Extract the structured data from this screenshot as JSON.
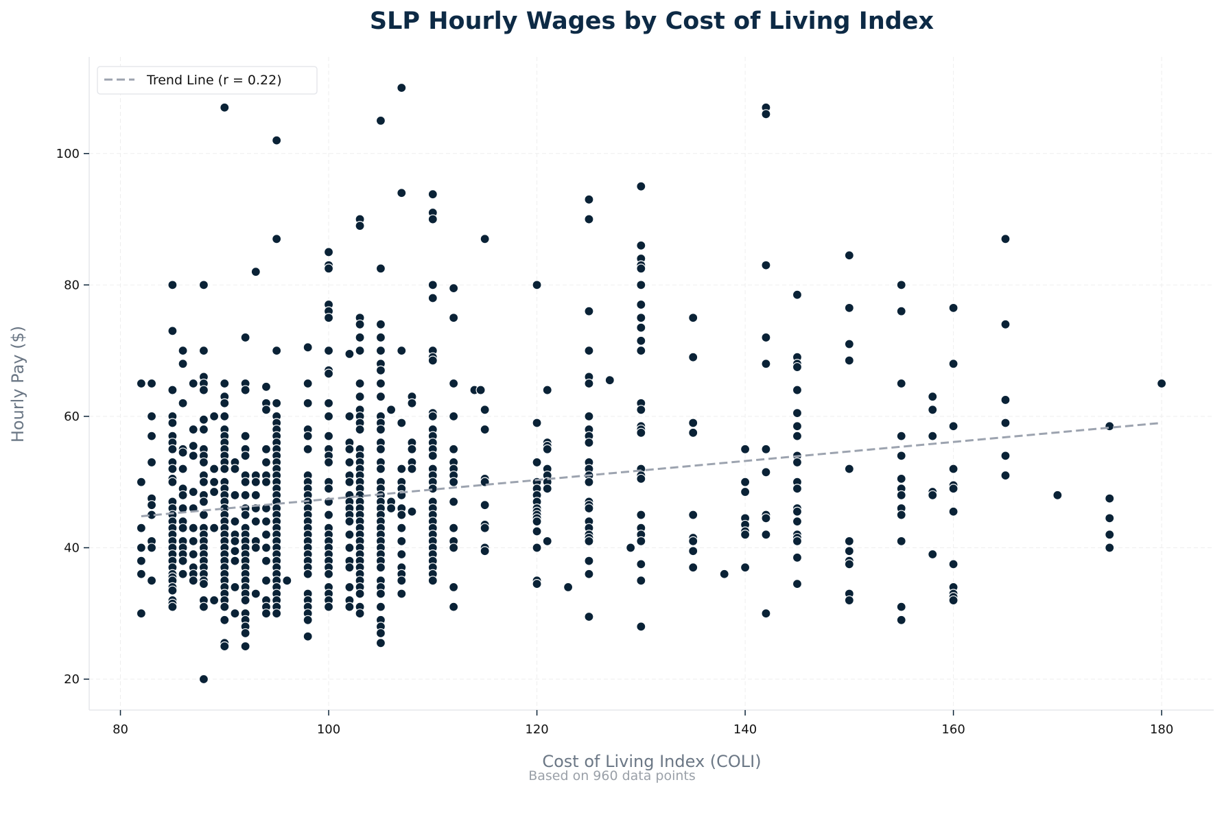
{
  "chart_data": {
    "type": "scatter",
    "title": "SLP Hourly Wages by Cost of Living Index",
    "xlabel": "Cost of Living Index (COLI)",
    "ylabel": "Hourly Pay ($)",
    "footnote": "Based on 960 data points",
    "xlim": [
      77,
      185
    ],
    "ylim": [
      15.3,
      114.7
    ],
    "xticks": [
      80,
      100,
      120,
      140,
      160,
      180
    ],
    "yticks": [
      20,
      40,
      60,
      80,
      100
    ],
    "grid": true,
    "legend_position": "top-left",
    "point_color": "#0a2236",
    "trend_color": "#9ca3af",
    "trend_line": {
      "label": "Trend Line (r = 0.22)",
      "x": [
        82,
        180
      ],
      "y": [
        44.8,
        59.0
      ]
    },
    "columns": [
      {
        "x": 82,
        "y": [
          65,
          50,
          43,
          40,
          38,
          36,
          30
        ]
      },
      {
        "x": 83,
        "y": [
          65,
          60,
          57,
          53,
          47.5,
          46.5,
          45,
          41,
          40,
          35
        ]
      },
      {
        "x": 85,
        "y": [
          80,
          73,
          64,
          60,
          59,
          57,
          56,
          55,
          53,
          52,
          50.5,
          50,
          47,
          46,
          45,
          44,
          43,
          42,
          41,
          40,
          39,
          38,
          37,
          36,
          35.5,
          35,
          34,
          33.5,
          32,
          31.5,
          31
        ]
      },
      {
        "x": 86,
        "y": [
          70,
          68,
          62,
          55,
          54.5,
          52,
          49,
          48,
          46,
          44,
          43,
          41,
          40,
          39,
          38,
          36
        ]
      },
      {
        "x": 87,
        "y": [
          65,
          58,
          55.5,
          54,
          48.5,
          46,
          43,
          41,
          39,
          37,
          36,
          35
        ]
      },
      {
        "x": 88,
        "y": [
          80,
          70,
          66,
          65,
          64,
          59.5,
          58,
          55,
          54,
          53,
          51,
          50,
          48,
          47,
          45,
          43,
          42,
          41,
          40,
          39,
          38,
          37,
          36,
          35,
          34.5,
          32,
          31,
          20
        ]
      },
      {
        "x": 89,
        "y": [
          60,
          52,
          50,
          48.5,
          43,
          32
        ]
      },
      {
        "x": 90,
        "y": [
          107,
          65,
          63,
          62,
          60,
          58,
          57,
          56,
          55,
          54,
          53,
          52,
          50,
          49,
          48,
          47,
          46,
          45,
          44,
          43,
          42,
          41,
          40,
          39,
          38,
          37,
          36,
          35,
          34,
          33,
          32,
          31,
          29,
          25.5,
          25
        ]
      },
      {
        "x": 91,
        "y": [
          53,
          52,
          48,
          44,
          42,
          41,
          39.5,
          38,
          34,
          30
        ]
      },
      {
        "x": 92,
        "y": [
          72,
          65,
          64,
          57,
          55,
          54,
          51,
          50,
          48,
          46,
          45,
          43,
          42,
          41,
          40,
          39,
          38,
          37,
          36,
          35,
          34,
          33,
          32,
          30,
          29,
          28,
          27,
          25
        ]
      },
      {
        "x": 93,
        "y": [
          82,
          51,
          50,
          48,
          46,
          44,
          41,
          40,
          33
        ]
      },
      {
        "x": 94,
        "y": [
          64.5,
          62,
          61,
          55,
          53,
          51,
          50,
          46,
          44,
          42,
          40,
          38,
          35,
          32,
          31,
          30
        ]
      },
      {
        "x": 95,
        "y": [
          102,
          87,
          70,
          62,
          60,
          59,
          58,
          57,
          56,
          55,
          54,
          53,
          52,
          51,
          50,
          49,
          48,
          47,
          46,
          45,
          44,
          43,
          42,
          41,
          40,
          39,
          38,
          37,
          36,
          35,
          34,
          33,
          32,
          31,
          30
        ]
      },
      {
        "x": 96,
        "y": [
          35
        ]
      },
      {
        "x": 98,
        "y": [
          70.5,
          65,
          62,
          58,
          57,
          55,
          51,
          50,
          49,
          48,
          47,
          46,
          45,
          44,
          43,
          42,
          41,
          40,
          39,
          38,
          37,
          36,
          33,
          32,
          31,
          30,
          29,
          26.5
        ]
      },
      {
        "x": 100,
        "y": [
          85,
          83,
          82.5,
          77,
          76,
          75,
          70,
          67,
          66.5,
          62,
          60,
          57,
          55,
          54,
          53,
          50,
          49,
          47,
          45,
          43,
          42,
          41,
          40,
          39,
          38,
          37,
          36,
          34,
          33,
          32,
          31
        ]
      },
      {
        "x": 102,
        "y": [
          69.5,
          60,
          56,
          55,
          53,
          51,
          50,
          48,
          47,
          46,
          45,
          44,
          42,
          40,
          38,
          37,
          34,
          32,
          31
        ]
      },
      {
        "x": 103,
        "y": [
          90,
          89,
          75,
          74,
          72,
          70,
          65,
          63,
          61,
          60,
          59,
          58,
          55,
          54,
          53,
          52,
          51,
          50,
          49,
          48,
          47,
          46,
          45,
          44,
          43,
          42,
          41,
          40,
          39,
          38,
          37,
          36,
          35,
          34,
          33,
          31,
          30
        ]
      },
      {
        "x": 105,
        "y": [
          105,
          82.5,
          74,
          72,
          70,
          68,
          67,
          65,
          63,
          60,
          59,
          58,
          56,
          55,
          53,
          52,
          50,
          49,
          48,
          47,
          46,
          45,
          44,
          43,
          42,
          41,
          40,
          39,
          38,
          37,
          35,
          34,
          33,
          31,
          29,
          28,
          27,
          25.5
        ]
      },
      {
        "x": 106,
        "y": [
          61,
          47,
          46
        ]
      },
      {
        "x": 107,
        "y": [
          110,
          94,
          70,
          59,
          52,
          50,
          49,
          48,
          46,
          45,
          43,
          41,
          39,
          37,
          36,
          35,
          33
        ]
      },
      {
        "x": 108,
        "y": [
          63,
          62,
          56,
          55,
          53,
          52,
          45.5
        ]
      },
      {
        "x": 110,
        "y": [
          93.8,
          91,
          90,
          80,
          78,
          70,
          69,
          68.5,
          60.5,
          60,
          58,
          57,
          56,
          55,
          54,
          52,
          51,
          50,
          49,
          47,
          46,
          45,
          44,
          43,
          42,
          41,
          40,
          39,
          38,
          37,
          36,
          35
        ]
      },
      {
        "x": 112,
        "y": [
          79.5,
          75,
          65,
          60,
          55,
          53,
          52,
          51,
          50,
          47,
          43,
          41,
          40,
          34,
          31
        ]
      },
      {
        "x": 114,
        "y": [
          64
        ]
      },
      {
        "x": 114.6,
        "y": [
          64
        ]
      },
      {
        "x": 115,
        "y": [
          87,
          61,
          58,
          50.5,
          50,
          46.5,
          43.5,
          43,
          40,
          39.5
        ]
      },
      {
        "x": 120,
        "y": [
          80,
          59,
          53,
          50,
          49,
          48,
          47,
          46,
          45.5,
          45,
          44.5,
          44,
          42.5,
          40,
          35,
          34.5
        ]
      },
      {
        "x": 121,
        "y": [
          64,
          56,
          55.5,
          55,
          52,
          51,
          50,
          49,
          41
        ]
      },
      {
        "x": 123,
        "y": [
          34
        ]
      },
      {
        "x": 125,
        "y": [
          93,
          90,
          76,
          70,
          66,
          65,
          60,
          58,
          57,
          56,
          53,
          52,
          51,
          50,
          47,
          46.5,
          46,
          44,
          43,
          42,
          41.5,
          41,
          38,
          36,
          29.5
        ]
      },
      {
        "x": 127,
        "y": [
          65.5
        ]
      },
      {
        "x": 129,
        "y": [
          40
        ]
      },
      {
        "x": 130,
        "y": [
          95,
          86,
          84,
          83,
          82.5,
          80,
          77,
          75,
          73.5,
          71.5,
          70,
          62,
          61,
          58.5,
          58,
          57.5,
          52,
          51,
          50.5,
          45,
          43,
          42,
          41,
          37.5,
          35,
          28
        ]
      },
      {
        "x": 135,
        "y": [
          75,
          69,
          59,
          57.5,
          45,
          41.5,
          41,
          39.5,
          37
        ]
      },
      {
        "x": 138,
        "y": [
          36
        ]
      },
      {
        "x": 140,
        "y": [
          55,
          50,
          48.5,
          44.5,
          43.5,
          42.5,
          42,
          37
        ]
      },
      {
        "x": 142,
        "y": [
          107,
          106,
          83,
          72,
          68,
          55,
          51.5,
          45,
          44.5,
          42,
          30
        ]
      },
      {
        "x": 145,
        "y": [
          78.5,
          69,
          68,
          67.5,
          64,
          60.5,
          58.5,
          57,
          54,
          53,
          50,
          49,
          46,
          45.5,
          44,
          42,
          41.5,
          41,
          38.5,
          34.5
        ]
      },
      {
        "x": 150,
        "y": [
          84.5,
          76.5,
          71,
          68.5,
          52,
          41,
          39.5,
          38,
          37.5,
          33,
          32
        ]
      },
      {
        "x": 155,
        "y": [
          80,
          76,
          65,
          57,
          54,
          50.5,
          49,
          48,
          46,
          45,
          41,
          31,
          29
        ]
      },
      {
        "x": 158,
        "y": [
          63,
          61,
          57,
          48.5,
          48,
          39
        ]
      },
      {
        "x": 160,
        "y": [
          76.5,
          68,
          58.5,
          52,
          49.5,
          49,
          45.5,
          37.5,
          34,
          33,
          32.5,
          32
        ]
      },
      {
        "x": 165,
        "y": [
          87,
          74,
          62.5,
          59,
          54,
          51
        ]
      },
      {
        "x": 170,
        "y": [
          48
        ]
      },
      {
        "x": 175,
        "y": [
          58.5,
          47.5,
          44.5,
          42,
          40
        ]
      },
      {
        "x": 180,
        "y": [
          65
        ]
      }
    ]
  }
}
